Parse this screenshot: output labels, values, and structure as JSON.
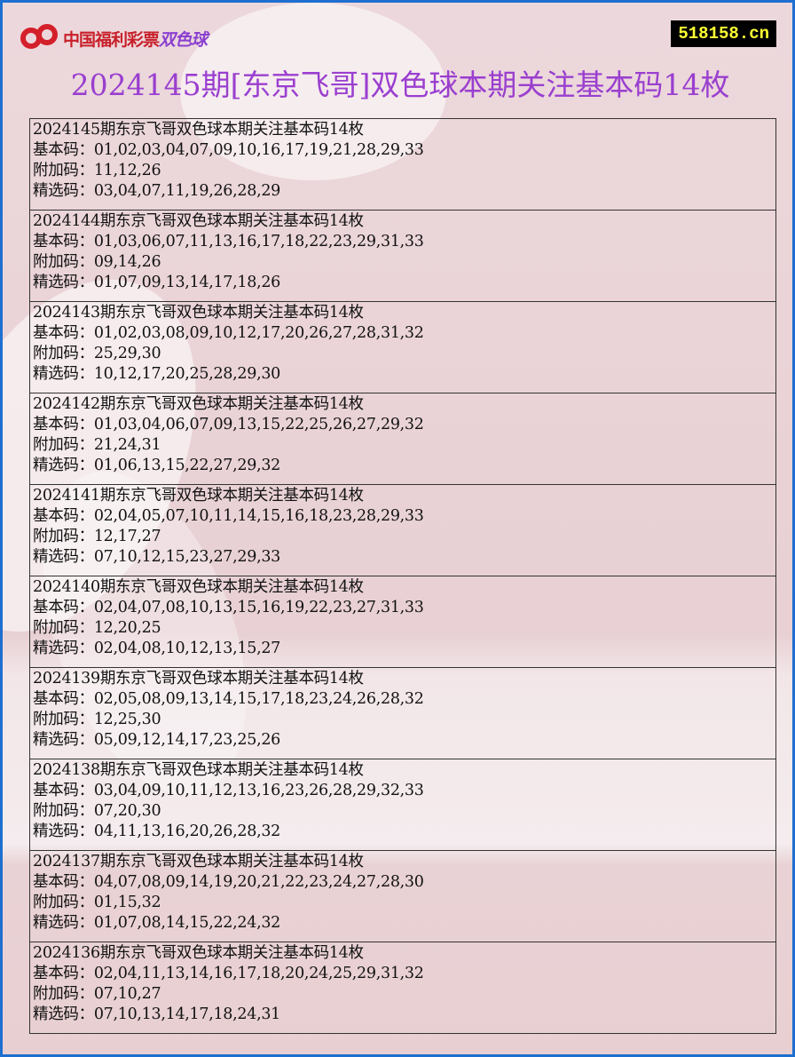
{
  "header": {
    "logo_text": "中国福利彩票",
    "logo_text_brand": "双色球",
    "site": "518158.cn",
    "title": "2024145期[东京飞哥]双色球本期关注基本码14枚"
  },
  "labels": {
    "basic": "基本码：",
    "extra": "附加码：",
    "selected": "精选码："
  },
  "records": [
    {
      "heading": "2024145期东京飞哥双色球本期关注基本码14枚",
      "basic": "01,02,03,04,07,09,10,16,17,19,21,28,29,33",
      "extra": "11,12,26",
      "selected": "03,04,07,11,19,26,28,29"
    },
    {
      "heading": "2024144期东京飞哥双色球本期关注基本码14枚",
      "basic": "01,03,06,07,11,13,16,17,18,22,23,29,31,33",
      "extra": "09,14,26",
      "selected": "01,07,09,13,14,17,18,26"
    },
    {
      "heading": "2024143期东京飞哥双色球本期关注基本码14枚",
      "basic": "01,02,03,08,09,10,12,17,20,26,27,28,31,32",
      "extra": "25,29,30",
      "selected": "10,12,17,20,25,28,29,30"
    },
    {
      "heading": "2024142期东京飞哥双色球本期关注基本码14枚",
      "basic": "01,03,04,06,07,09,13,15,22,25,26,27,29,32",
      "extra": "21,24,31",
      "selected": "01,06,13,15,22,27,29,32"
    },
    {
      "heading": "2024141期东京飞哥双色球本期关注基本码14枚",
      "basic": "02,04,05,07,10,11,14,15,16,18,23,28,29,33",
      "extra": "12,17,27",
      "selected": "07,10,12,15,23,27,29,33"
    },
    {
      "heading": "2024140期东京飞哥双色球本期关注基本码14枚",
      "basic": "02,04,07,08,10,13,15,16,19,22,23,27,31,33",
      "extra": "12,20,25",
      "selected": "02,04,08,10,12,13,15,27"
    },
    {
      "heading": "2024139期东京飞哥双色球本期关注基本码14枚",
      "basic": "02,05,08,09,13,14,15,17,18,23,24,26,28,32",
      "extra": "12,25,30",
      "selected": "05,09,12,14,17,23,25,26"
    },
    {
      "heading": "2024138期东京飞哥双色球本期关注基本码14枚",
      "basic": "03,04,09,10,11,12,13,16,23,26,28,29,32,33",
      "extra": "07,20,30",
      "selected": "04,11,13,16,20,26,28,32"
    },
    {
      "heading": "2024137期东京飞哥双色球本期关注基本码14枚",
      "basic": "04,07,08,09,14,19,20,21,22,23,24,27,28,30",
      "extra": "01,15,32",
      "selected": "01,07,08,14,15,22,24,32"
    },
    {
      "heading": "2024136期东京飞哥双色球本期关注基本码14枚",
      "basic": "02,04,11,13,14,16,17,18,20,24,25,29,31,32",
      "extra": "07,10,27",
      "selected": "07,10,13,14,17,18,24,31"
    }
  ]
}
